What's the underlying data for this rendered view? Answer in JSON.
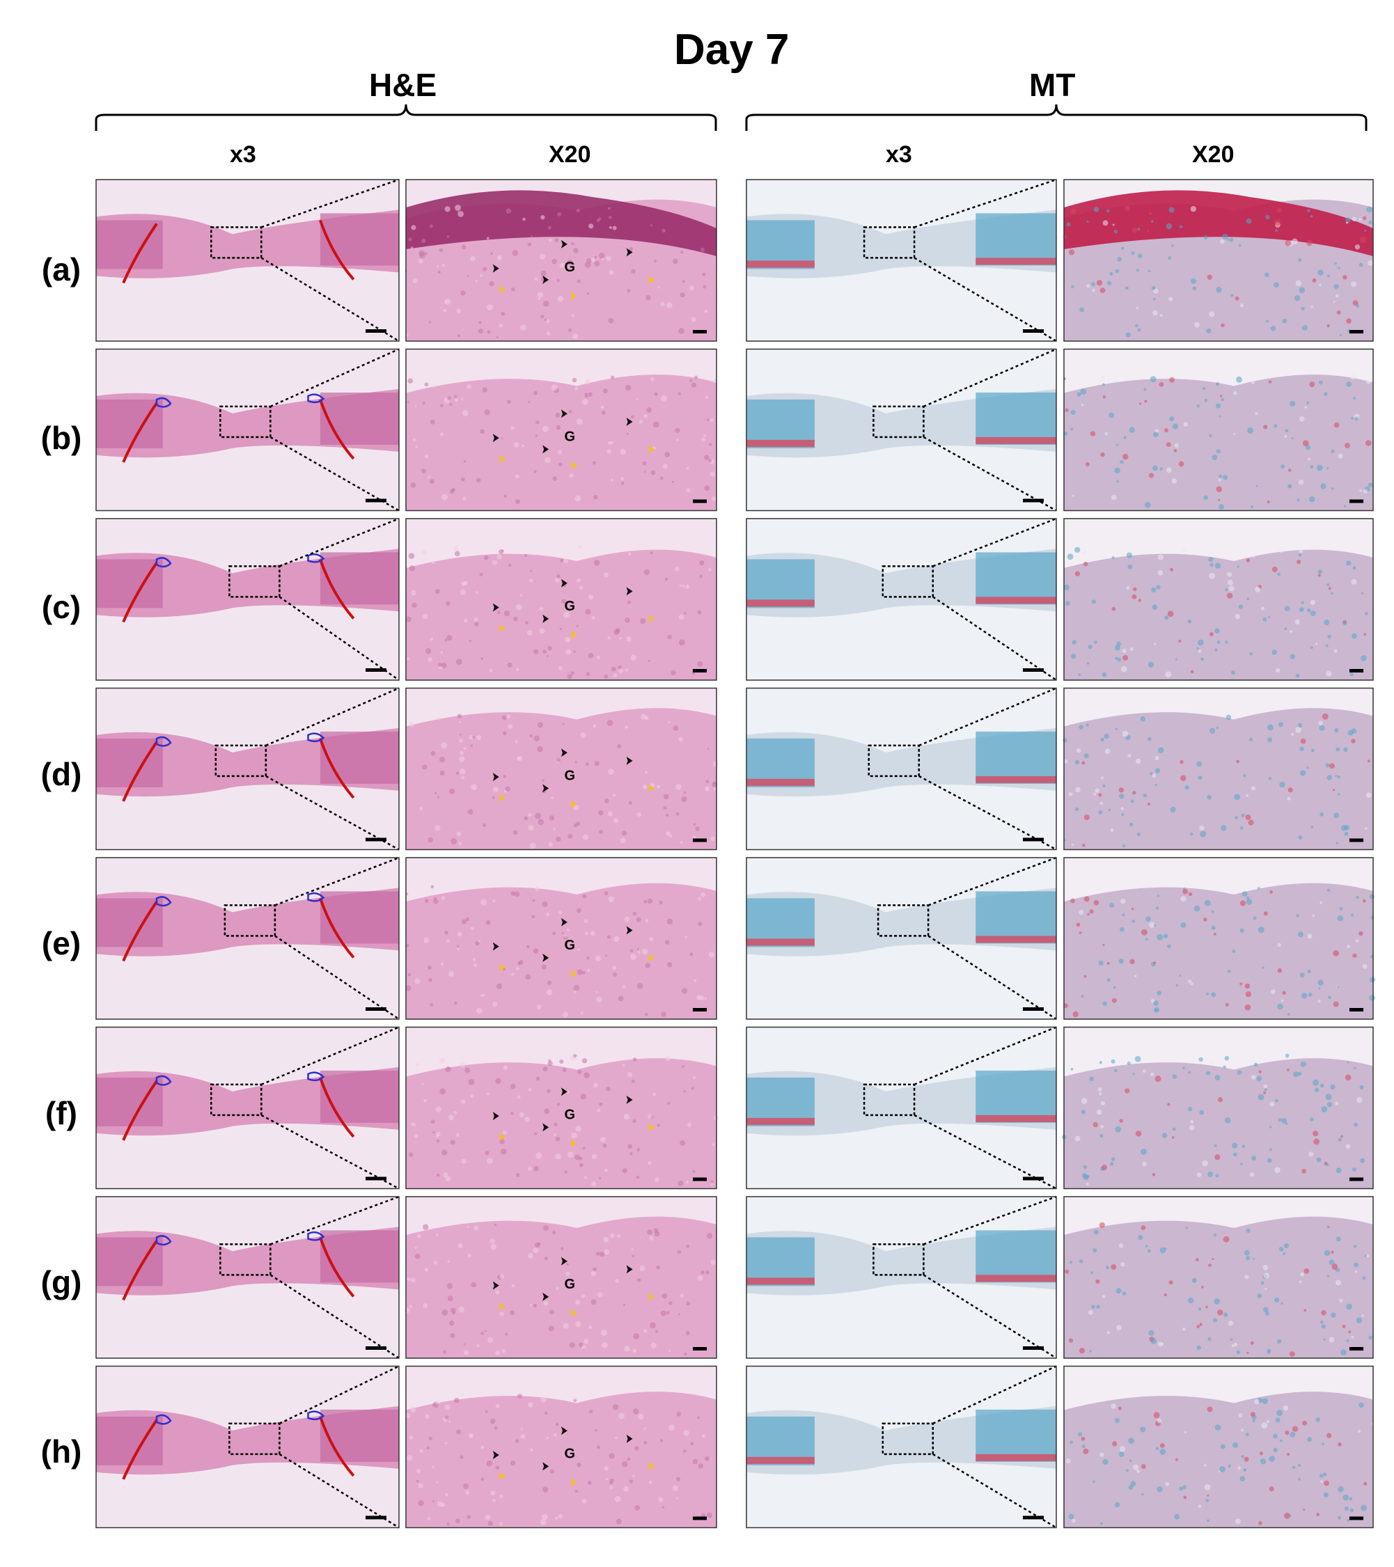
{
  "figure": {
    "title": "Day 7",
    "groups": [
      "H&E",
      "MT"
    ],
    "column_labels": [
      "x3",
      "X20",
      "x3",
      "X20"
    ],
    "rows": [
      {
        "label": "(a)",
        "he_labels": [
          "G"
        ]
      },
      {
        "label": "(b)",
        "he_labels": [
          "G"
        ]
      },
      {
        "label": "(c)",
        "he_labels": [
          "G"
        ]
      },
      {
        "label": "(d)",
        "he_labels": [
          "G"
        ]
      },
      {
        "label": "(e)",
        "he_labels": [
          "G"
        ]
      },
      {
        "label": "(f)",
        "he_labels": [
          "G"
        ]
      },
      {
        "label": "(g)",
        "he_labels": [
          "G"
        ]
      },
      {
        "label": "(h)",
        "he_labels": [
          "G"
        ]
      }
    ],
    "colors": {
      "he_background": "#f1e6ef",
      "he_tissue": "#d98bb8",
      "he_dark": "#9a2f6c",
      "mt_background": "#eef1f5",
      "mt_blue": "#5aa6c9",
      "mt_red": "#d8485e",
      "wound_edge_line": "#cc1010",
      "epithelium_outline": "#2f2fd0",
      "arrow_black": "#111111",
      "arrow_yellow": "#f2c21b"
    }
  }
}
